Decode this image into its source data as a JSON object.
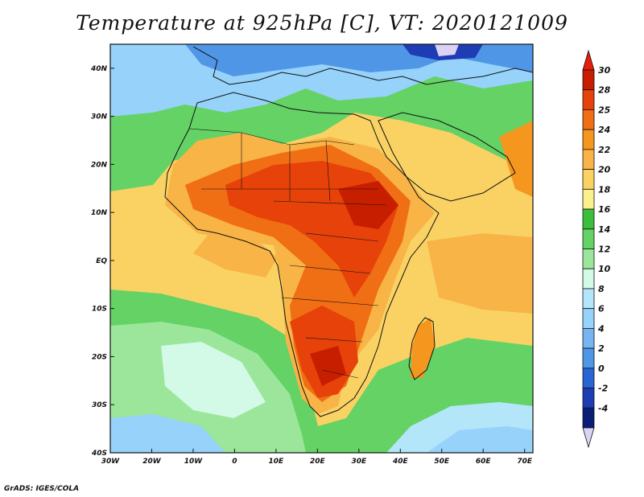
{
  "title": "Temperature at 925hPa [C], VT: 2020121009",
  "footer": "GrADS: IGES/COLA",
  "map": {
    "lat_labels": [
      "40N",
      "30N",
      "20N",
      "10N",
      "EQ",
      "10S",
      "20S",
      "30S",
      "40S"
    ],
    "lon_labels": [
      "30W",
      "20W",
      "10W",
      "0",
      "10E",
      "20E",
      "30E",
      "40E",
      "50E",
      "60E",
      "70E"
    ],
    "lon_range": [
      -30,
      72
    ],
    "lat_range": [
      -40,
      45
    ],
    "variable": "Temperature",
    "level": "925hPa",
    "units": "C"
  },
  "colorbar": {
    "labels": [
      "30",
      "28",
      "25",
      "24",
      "22",
      "20",
      "18",
      "16",
      "14",
      "12",
      "10",
      "8",
      "6",
      "4",
      "2",
      "0",
      "-2",
      "-4"
    ],
    "colors": [
      "#c81e00",
      "#e6420a",
      "#f06e14",
      "#f5961e",
      "#f8b446",
      "#fad264",
      "#faf08c",
      "#3cbe3c",
      "#64d264",
      "#9be69b",
      "#d2fae6",
      "#b4e6fa",
      "#96d2fa",
      "#78b4f0",
      "#5096e6",
      "#2864d2",
      "#1e3cb4",
      "#0a1e78"
    ],
    "top_color": "#e61e0a",
    "bottom_color": "#dcd2f5"
  }
}
